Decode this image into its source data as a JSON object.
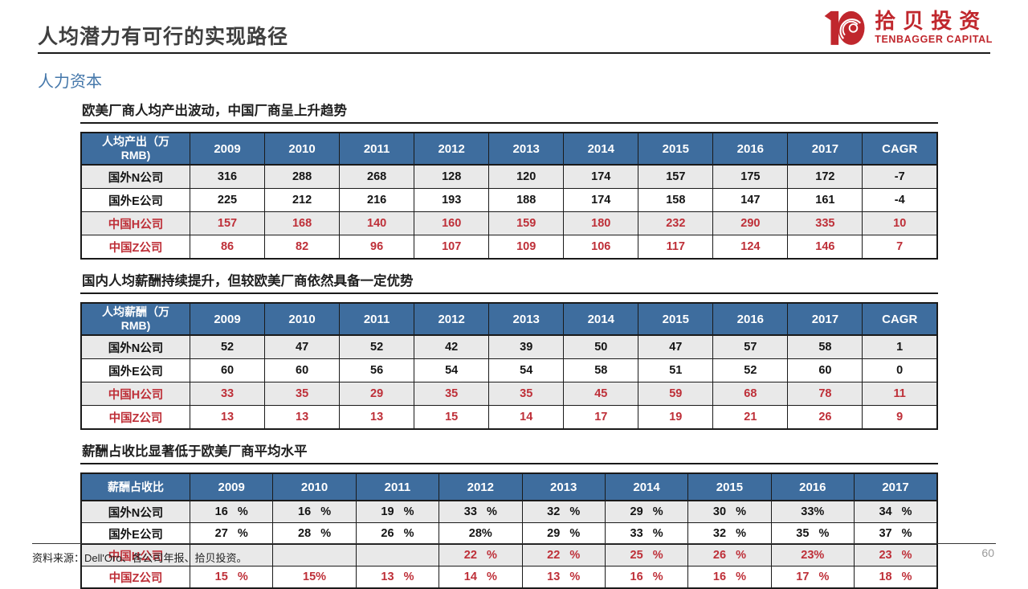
{
  "page": {
    "title": "人均潜力有可行的实现路径",
    "section_title": "人力资本",
    "source_note": "资料来源：Dell'Oro、各公司年报、拾贝投资。",
    "page_number": "60"
  },
  "logo": {
    "name_cn": "拾贝投资",
    "name_en": "TENBAGGER CAPITAL",
    "brand_color": "#c0272d"
  },
  "colors": {
    "header_blue": "#3e6d9e",
    "row_stripe_gray": "#e9e9e9",
    "cagr_light_blue": "#dce9f5",
    "china_row_red": "#be2f38",
    "section_title_blue": "#4477aa"
  },
  "tables": [
    {
      "caption": "欧美厂商人均产出波动，中国厂商呈上升趋势",
      "columns": [
        "人均产出（万RMB)",
        "2009",
        "2010",
        "2011",
        "2012",
        "2013",
        "2014",
        "2015",
        "2016",
        "2017",
        "CAGR"
      ],
      "has_cagr": true,
      "rows": [
        {
          "label": "国外N公司",
          "red": false,
          "values": [
            "316",
            "288",
            "268",
            "128",
            "120",
            "174",
            "157",
            "175",
            "172",
            "-7"
          ]
        },
        {
          "label": "国外E公司",
          "red": false,
          "values": [
            "225",
            "212",
            "216",
            "193",
            "188",
            "174",
            "158",
            "147",
            "161",
            "-4"
          ]
        },
        {
          "label": "中国H公司",
          "red": true,
          "values": [
            "157",
            "168",
            "140",
            "160",
            "159",
            "180",
            "232",
            "290",
            "335",
            "10"
          ]
        },
        {
          "label": "中国Z公司",
          "red": true,
          "values": [
            "86",
            "82",
            "96",
            "107",
            "109",
            "106",
            "117",
            "124",
            "146",
            "7"
          ]
        }
      ]
    },
    {
      "caption": "国内人均薪酬持续提升，但较欧美厂商依然具备一定优势",
      "columns": [
        "人均薪酬（万RMB)",
        "2009",
        "2010",
        "2011",
        "2012",
        "2013",
        "2014",
        "2015",
        "2016",
        "2017",
        "CAGR"
      ],
      "has_cagr": true,
      "rows": [
        {
          "label": "国外N公司",
          "red": false,
          "values": [
            "52",
            "47",
            "52",
            "42",
            "39",
            "50",
            "47",
            "57",
            "58",
            "1"
          ]
        },
        {
          "label": "国外E公司",
          "red": false,
          "values": [
            "60",
            "60",
            "56",
            "54",
            "54",
            "58",
            "51",
            "52",
            "60",
            "0"
          ]
        },
        {
          "label": "中国H公司",
          "red": true,
          "values": [
            "33",
            "35",
            "29",
            "35",
            "35",
            "45",
            "59",
            "68",
            "78",
            "11"
          ]
        },
        {
          "label": "中国Z公司",
          "red": true,
          "values": [
            "13",
            "13",
            "13",
            "15",
            "14",
            "17",
            "19",
            "21",
            "26",
            "9"
          ]
        }
      ]
    },
    {
      "caption": "薪酬占收比显著低于欧美厂商平均水平",
      "columns": [
        "薪酬占收比",
        "2009",
        "2010",
        "2011",
        "2012",
        "2013",
        "2014",
        "2015",
        "2016",
        "2017"
      ],
      "has_cagr": false,
      "rows": [
        {
          "label": "国外N公司",
          "red": false,
          "values": [
            "16   %",
            "16   %",
            "19   %",
            "33   %",
            "32   %",
            "29   %",
            "30   %",
            "33%",
            "34   %"
          ]
        },
        {
          "label": "国外E公司",
          "red": false,
          "values": [
            "27   %",
            "28   %",
            "26   %",
            "28%",
            "29   %",
            "33   %",
            "32   %",
            "35   %",
            "37   %"
          ]
        },
        {
          "label": "中国H公司",
          "red": true,
          "values": [
            "",
            "",
            "",
            "22   %",
            "22   %",
            "25   %",
            "26   %",
            "23%",
            "23   %"
          ]
        },
        {
          "label": "中国Z公司",
          "red": true,
          "values": [
            "15   %",
            "15%",
            "13   %",
            "14   %",
            "13   %",
            "16   %",
            "16   %",
            "17   %",
            "18   %"
          ]
        }
      ]
    }
  ]
}
